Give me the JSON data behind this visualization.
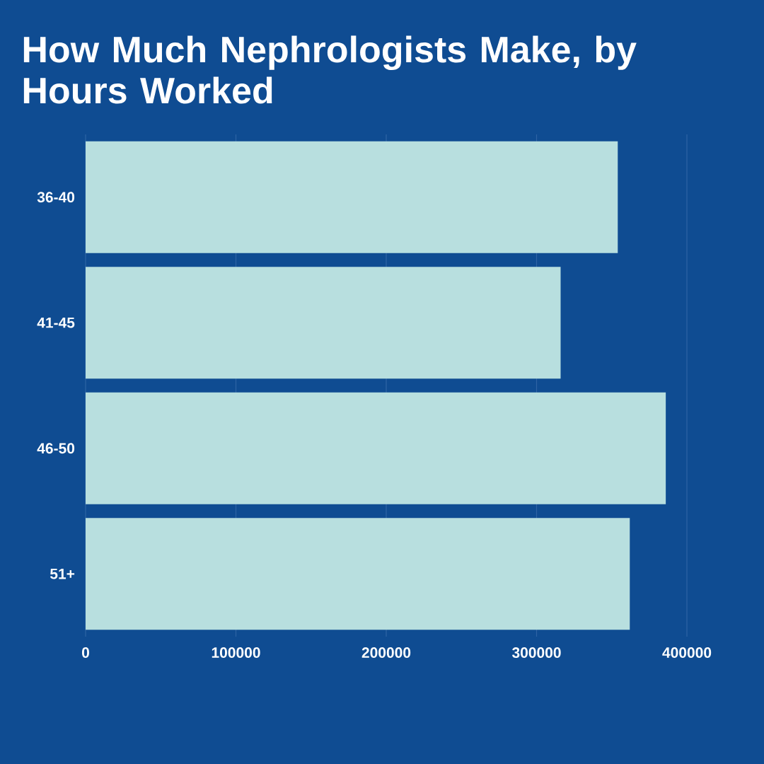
{
  "chart_data": {
    "type": "bar",
    "orientation": "horizontal",
    "title": "How Much Nephrologists Make, by Hours Worked",
    "categories": [
      "36-40",
      "41-45",
      "46-50",
      "51+"
    ],
    "values": [
      354000,
      316000,
      386000,
      362000
    ],
    "color": "#b8dfdf",
    "xlim": [
      0,
      400000
    ],
    "xticks": [
      0,
      100000,
      200000,
      300000,
      400000
    ],
    "grid": "x"
  }
}
